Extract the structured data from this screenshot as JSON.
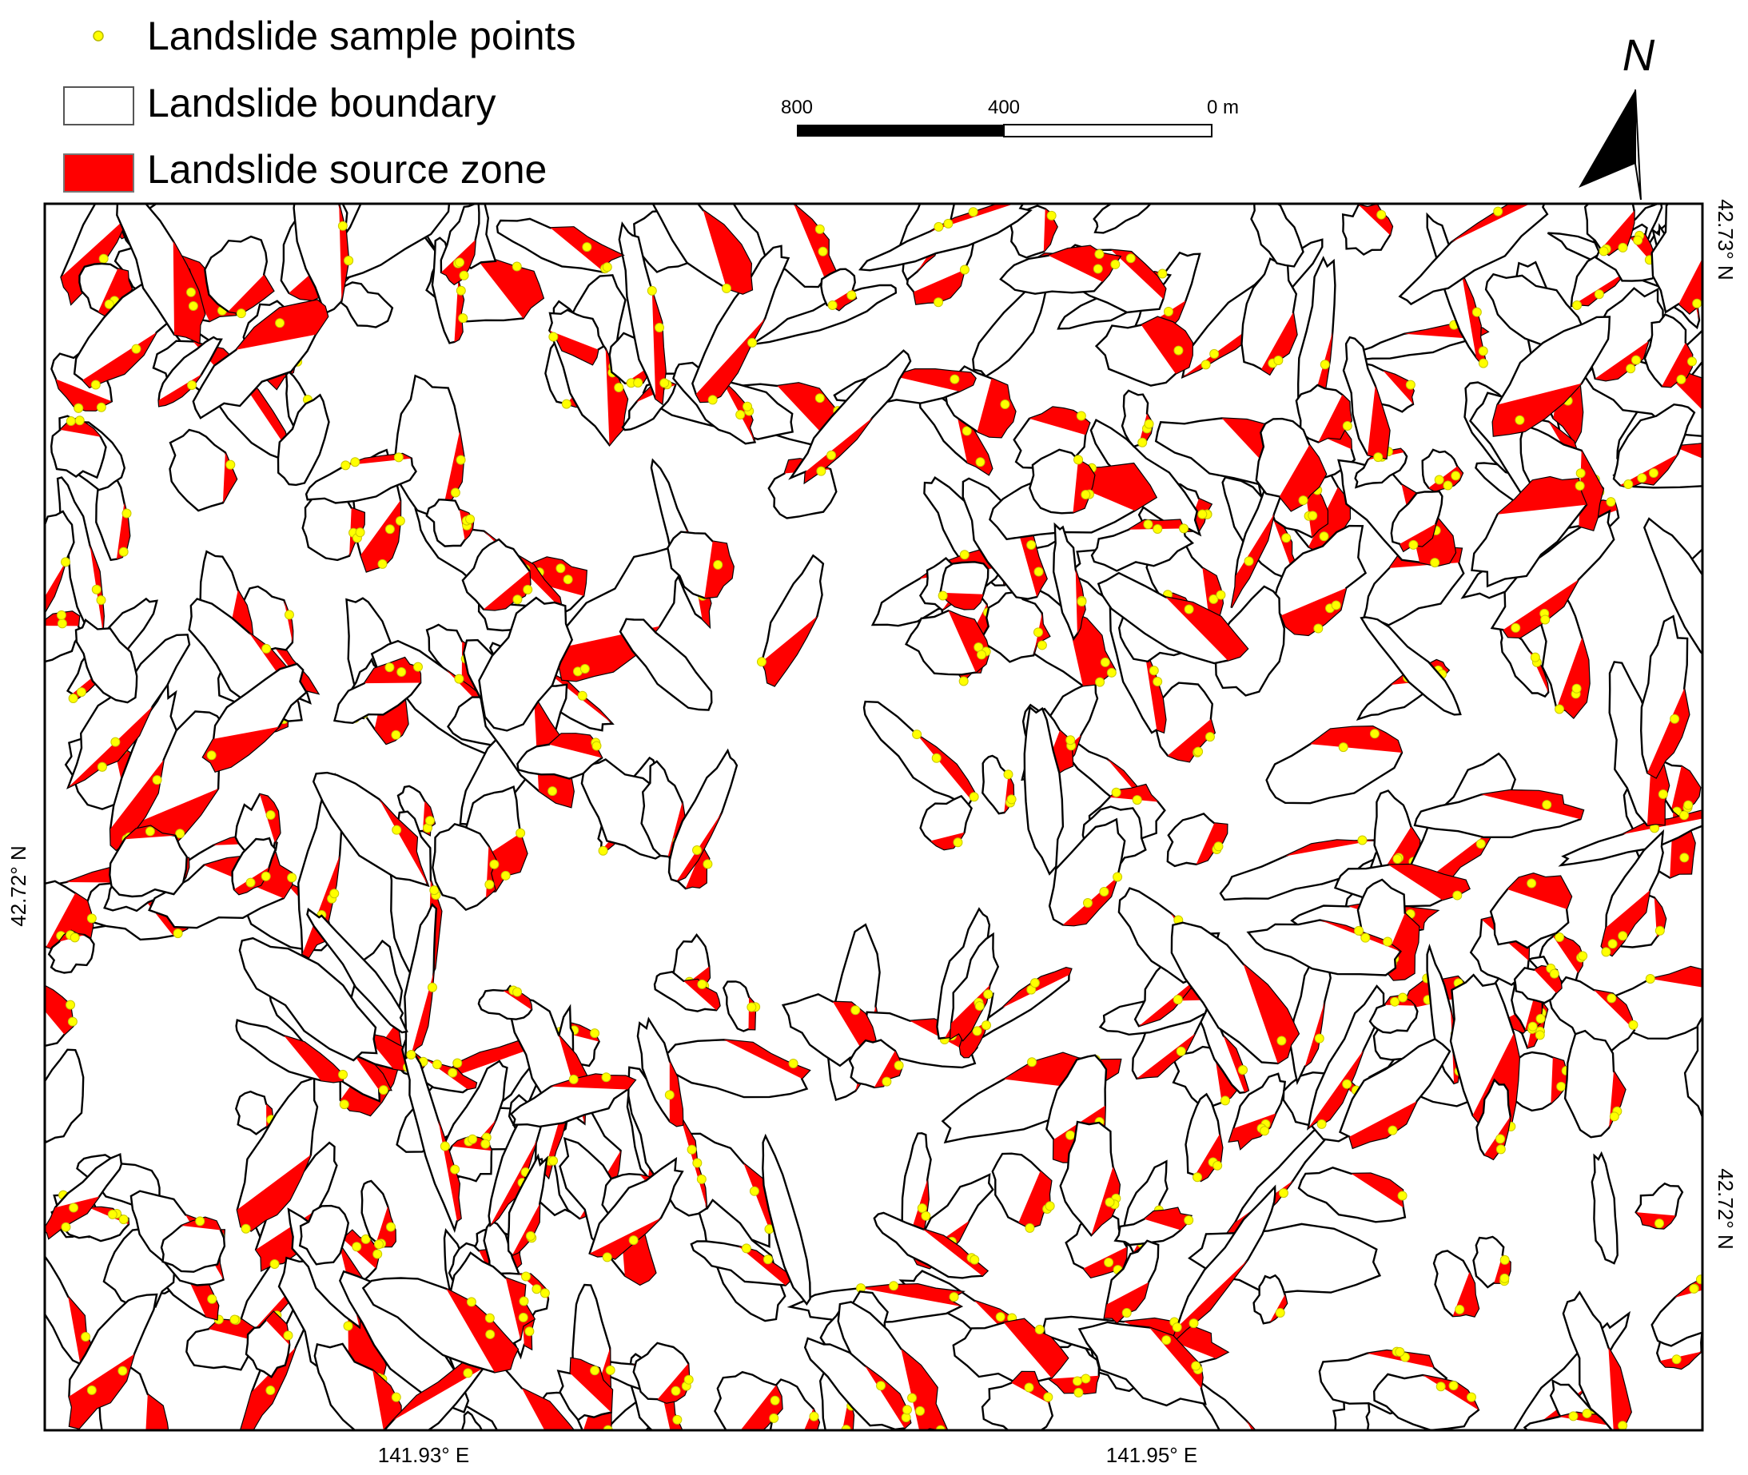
{
  "legend": {
    "items": [
      {
        "label": "Landslide sample points"
      },
      {
        "label": "Landslide boundary"
      },
      {
        "label": "Landslide source zone"
      }
    ]
  },
  "scale_bar": {
    "labels": [
      "800",
      "400",
      "0 m"
    ]
  },
  "north_arrow": {
    "label": "N"
  },
  "axes": {
    "bottom": [
      "141.93° E",
      "141.95° E"
    ],
    "left": [
      "42.72° N"
    ],
    "right": [
      "42.73° N",
      "42.72° N"
    ]
  }
}
